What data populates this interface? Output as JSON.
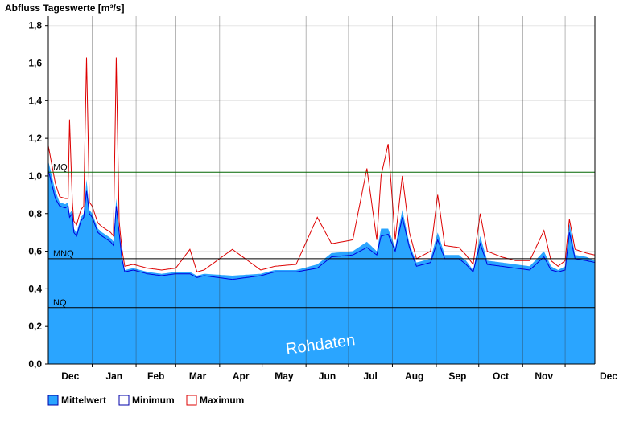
{
  "chart_data": {
    "type": "area",
    "title": "Abfluss Tageswerte [m³/s]",
    "ylim": [
      0,
      1.85
    ],
    "y_ticks": [
      "0,0",
      "0,2",
      "0,4",
      "0,6",
      "0,8",
      "1,0",
      "1,2",
      "1,4",
      "1,6",
      "1,8"
    ],
    "y_tick_values": [
      0,
      0.2,
      0.4,
      0.6,
      0.8,
      1.0,
      1.2,
      1.4,
      1.6,
      1.8
    ],
    "x_tick_labels": [
      "Dec",
      "Jan",
      "Feb",
      "Mar",
      "Apr",
      "May",
      "Jun",
      "Jul",
      "Aug",
      "Sep",
      "Oct",
      "Nov",
      "Dec"
    ],
    "grid": true,
    "watermark": "Rohdaten",
    "reference_lines": [
      {
        "name": "MQ",
        "value": 1.02,
        "color": "#006600"
      },
      {
        "name": "MNQ",
        "value": 0.56,
        "color": "#000000"
      },
      {
        "name": "NQ",
        "value": 0.3,
        "color": "#000000"
      }
    ],
    "series": [
      {
        "name": "Mittelwert",
        "color": "#2aa5ff",
        "keyframes": [
          [
            0,
            1.08
          ],
          [
            5,
            0.92
          ],
          [
            8,
            0.86
          ],
          [
            12,
            0.85
          ],
          [
            14,
            0.86
          ],
          [
            15,
            0.8
          ],
          [
            17,
            0.82
          ],
          [
            18,
            0.72
          ],
          [
            20,
            0.7
          ],
          [
            23,
            0.78
          ],
          [
            25,
            0.8
          ],
          [
            27,
            0.98
          ],
          [
            29,
            0.82
          ],
          [
            31,
            0.8
          ],
          [
            35,
            0.72
          ],
          [
            38,
            0.7
          ],
          [
            44,
            0.67
          ],
          [
            46,
            0.65
          ],
          [
            48,
            0.88
          ],
          [
            50,
            0.72
          ],
          [
            52,
            0.58
          ],
          [
            54,
            0.5
          ],
          [
            60,
            0.51
          ],
          [
            65,
            0.5
          ],
          [
            70,
            0.49
          ],
          [
            80,
            0.48
          ],
          [
            90,
            0.49
          ],
          [
            100,
            0.49
          ],
          [
            105,
            0.47
          ],
          [
            110,
            0.48
          ],
          [
            130,
            0.47
          ],
          [
            150,
            0.48
          ],
          [
            160,
            0.5
          ],
          [
            175,
            0.5
          ],
          [
            190,
            0.53
          ],
          [
            200,
            0.59
          ],
          [
            215,
            0.6
          ],
          [
            225,
            0.65
          ],
          [
            232,
            0.6
          ],
          [
            235,
            0.72
          ],
          [
            240,
            0.72
          ],
          [
            245,
            0.62
          ],
          [
            250,
            0.82
          ],
          [
            255,
            0.64
          ],
          [
            260,
            0.54
          ],
          [
            270,
            0.56
          ],
          [
            275,
            0.7
          ],
          [
            280,
            0.58
          ],
          [
            290,
            0.58
          ],
          [
            295,
            0.55
          ],
          [
            300,
            0.5
          ],
          [
            305,
            0.68
          ],
          [
            310,
            0.55
          ],
          [
            320,
            0.54
          ],
          [
            330,
            0.53
          ],
          [
            340,
            0.52
          ],
          [
            350,
            0.6
          ],
          [
            355,
            0.52
          ],
          [
            360,
            0.5
          ],
          [
            365,
            0.52
          ],
          [
            368,
            0.75
          ],
          [
            372,
            0.58
          ],
          [
            380,
            0.57
          ],
          [
            386,
            0.55
          ]
        ]
      },
      {
        "name": "Minimum",
        "color": "#0000dd",
        "keyframes": [
          [
            0,
            1.03
          ],
          [
            5,
            0.88
          ],
          [
            8,
            0.84
          ],
          [
            12,
            0.83
          ],
          [
            14,
            0.84
          ],
          [
            15,
            0.78
          ],
          [
            17,
            0.8
          ],
          [
            18,
            0.7
          ],
          [
            20,
            0.68
          ],
          [
            23,
            0.76
          ],
          [
            25,
            0.78
          ],
          [
            27,
            0.92
          ],
          [
            29,
            0.8
          ],
          [
            31,
            0.78
          ],
          [
            35,
            0.7
          ],
          [
            38,
            0.68
          ],
          [
            44,
            0.65
          ],
          [
            46,
            0.63
          ],
          [
            48,
            0.84
          ],
          [
            50,
            0.7
          ],
          [
            52,
            0.56
          ],
          [
            54,
            0.49
          ],
          [
            60,
            0.5
          ],
          [
            65,
            0.49
          ],
          [
            70,
            0.48
          ],
          [
            80,
            0.47
          ],
          [
            90,
            0.48
          ],
          [
            100,
            0.48
          ],
          [
            105,
            0.46
          ],
          [
            110,
            0.47
          ],
          [
            130,
            0.45
          ],
          [
            150,
            0.47
          ],
          [
            160,
            0.49
          ],
          [
            175,
            0.49
          ],
          [
            190,
            0.51
          ],
          [
            200,
            0.57
          ],
          [
            215,
            0.58
          ],
          [
            225,
            0.62
          ],
          [
            232,
            0.58
          ],
          [
            235,
            0.68
          ],
          [
            240,
            0.69
          ],
          [
            245,
            0.6
          ],
          [
            250,
            0.78
          ],
          [
            255,
            0.62
          ],
          [
            260,
            0.52
          ],
          [
            270,
            0.54
          ],
          [
            275,
            0.66
          ],
          [
            280,
            0.56
          ],
          [
            290,
            0.56
          ],
          [
            295,
            0.53
          ],
          [
            300,
            0.49
          ],
          [
            305,
            0.64
          ],
          [
            310,
            0.53
          ],
          [
            320,
            0.52
          ],
          [
            330,
            0.51
          ],
          [
            340,
            0.5
          ],
          [
            350,
            0.57
          ],
          [
            355,
            0.5
          ],
          [
            360,
            0.49
          ],
          [
            365,
            0.5
          ],
          [
            368,
            0.7
          ],
          [
            372,
            0.56
          ],
          [
            380,
            0.55
          ],
          [
            386,
            0.54
          ]
        ]
      },
      {
        "name": "Maximum",
        "color": "#dd0000",
        "keyframes": [
          [
            0,
            1.16
          ],
          [
            5,
            0.96
          ],
          [
            8,
            0.89
          ],
          [
            12,
            0.88
          ],
          [
            14,
            0.88
          ],
          [
            15,
            1.3
          ],
          [
            17,
            0.86
          ],
          [
            18,
            0.76
          ],
          [
            20,
            0.74
          ],
          [
            23,
            0.82
          ],
          [
            25,
            0.84
          ],
          [
            27,
            1.63
          ],
          [
            29,
            0.86
          ],
          [
            31,
            0.84
          ],
          [
            35,
            0.75
          ],
          [
            38,
            0.73
          ],
          [
            44,
            0.7
          ],
          [
            46,
            0.68
          ],
          [
            48,
            1.63
          ],
          [
            50,
            0.76
          ],
          [
            52,
            0.61
          ],
          [
            54,
            0.52
          ],
          [
            60,
            0.53
          ],
          [
            65,
            0.52
          ],
          [
            70,
            0.51
          ],
          [
            80,
            0.5
          ],
          [
            90,
            0.51
          ],
          [
            100,
            0.61
          ],
          [
            105,
            0.49
          ],
          [
            110,
            0.5
          ],
          [
            130,
            0.61
          ],
          [
            150,
            0.5
          ],
          [
            160,
            0.52
          ],
          [
            175,
            0.53
          ],
          [
            190,
            0.78
          ],
          [
            200,
            0.64
          ],
          [
            215,
            0.66
          ],
          [
            225,
            1.04
          ],
          [
            232,
            0.66
          ],
          [
            235,
            1.0
          ],
          [
            240,
            1.17
          ],
          [
            245,
            0.66
          ],
          [
            250,
            1.0
          ],
          [
            255,
            0.7
          ],
          [
            260,
            0.56
          ],
          [
            270,
            0.6
          ],
          [
            275,
            0.9
          ],
          [
            280,
            0.63
          ],
          [
            290,
            0.62
          ],
          [
            295,
            0.58
          ],
          [
            300,
            0.53
          ],
          [
            305,
            0.8
          ],
          [
            310,
            0.6
          ],
          [
            320,
            0.57
          ],
          [
            330,
            0.55
          ],
          [
            340,
            0.55
          ],
          [
            350,
            0.71
          ],
          [
            355,
            0.55
          ],
          [
            360,
            0.52
          ],
          [
            365,
            0.55
          ],
          [
            368,
            0.77
          ],
          [
            372,
            0.61
          ],
          [
            380,
            0.59
          ],
          [
            386,
            0.58
          ]
        ]
      }
    ]
  },
  "legend": {
    "mean_label": "Mittelwert",
    "min_label": "Minimum",
    "max_label": "Maximum"
  }
}
